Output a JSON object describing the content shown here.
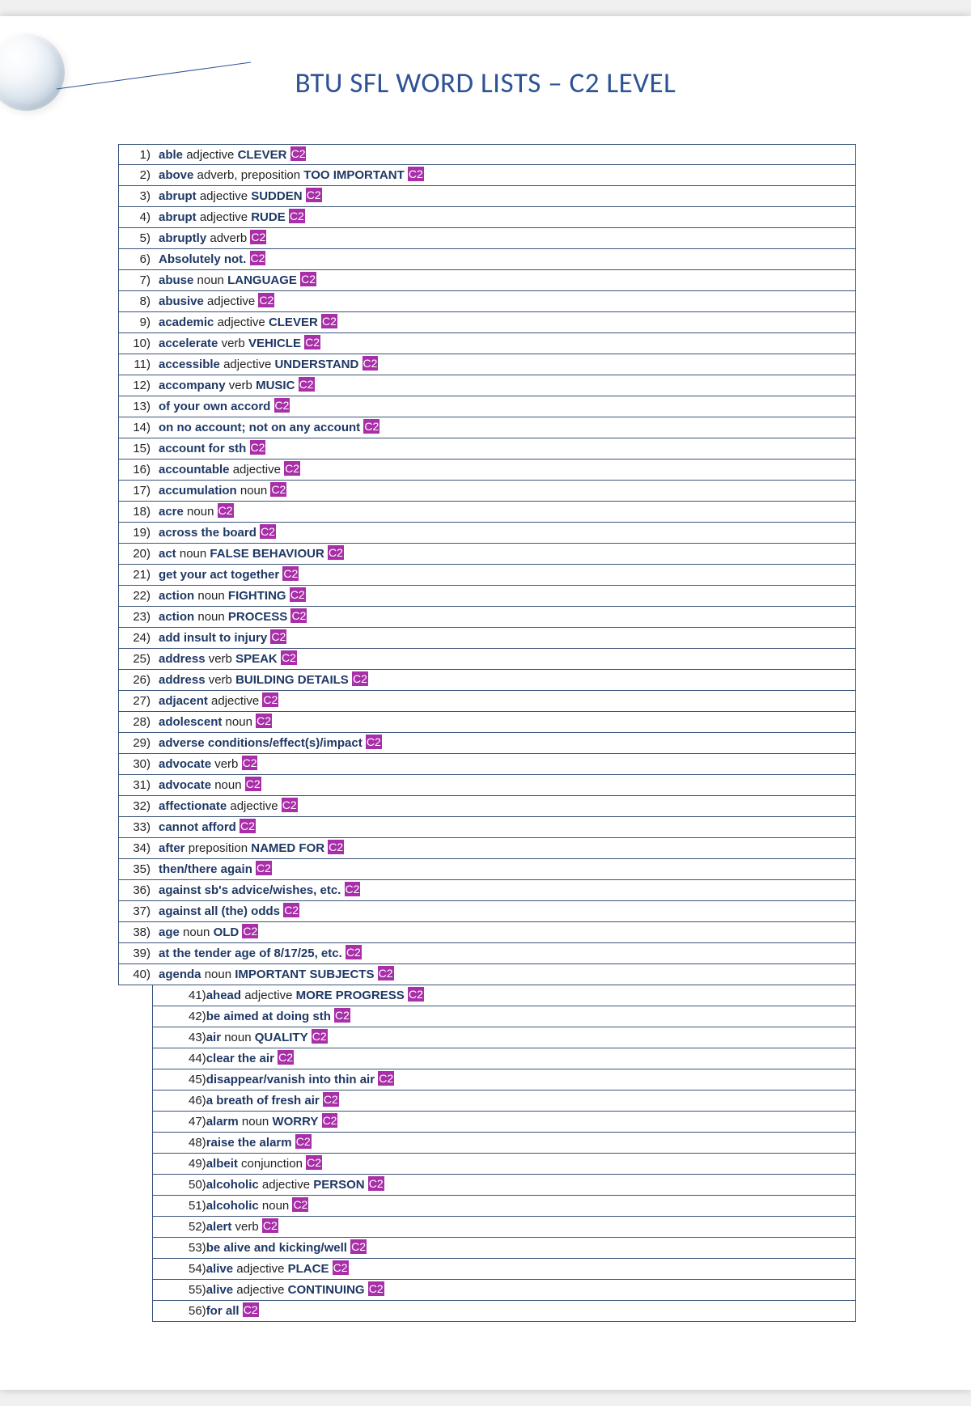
{
  "title": "BTU SFL WORD LISTS – C2 LEVEL",
  "level_tag": "C2",
  "colors": {
    "title_color": "#2e5395",
    "word_color": "#1f3864",
    "tag_bg": "#a82fa8",
    "tag_fg": "#ffffff",
    "border": "#3b547a"
  },
  "rows": [
    {
      "n": 1,
      "word": "able",
      "pos": "adjective",
      "meaning": "CLEVER",
      "indent": false
    },
    {
      "n": 2,
      "word": "above",
      "pos": "adverb, preposition",
      "meaning": "TOO IMPORTANT",
      "indent": false
    },
    {
      "n": 3,
      "word": "abrupt",
      "pos": "adjective",
      "meaning": "SUDDEN",
      "indent": false
    },
    {
      "n": 4,
      "word": "abrupt",
      "pos": "adjective",
      "meaning": "RUDE",
      "indent": false
    },
    {
      "n": 5,
      "word": "abruptly",
      "pos": "adverb",
      "meaning": "",
      "indent": false
    },
    {
      "n": 6,
      "word": "Absolutely not.",
      "pos": "",
      "meaning": "",
      "indent": false
    },
    {
      "n": 7,
      "word": "abuse",
      "pos": "noun",
      "meaning": "LANGUAGE",
      "indent": false
    },
    {
      "n": 8,
      "word": "abusive",
      "pos": "adjective",
      "meaning": "",
      "indent": false
    },
    {
      "n": 9,
      "word": "academic",
      "pos": "adjective",
      "meaning": "CLEVER",
      "indent": false
    },
    {
      "n": 10,
      "word": "accelerate",
      "pos": "verb",
      "meaning": "VEHICLE",
      "indent": false
    },
    {
      "n": 11,
      "word": "accessible",
      "pos": "adjective",
      "meaning": "UNDERSTAND",
      "indent": false
    },
    {
      "n": 12,
      "word": "accompany",
      "pos": "verb",
      "meaning": "MUSIC",
      "indent": false
    },
    {
      "n": 13,
      "word": "of your own accord",
      "pos": "",
      "meaning": "",
      "indent": false
    },
    {
      "n": 14,
      "word": "on no account; not on any account",
      "pos": "",
      "meaning": "",
      "indent": false
    },
    {
      "n": 15,
      "word": "account for sth",
      "pos": "",
      "meaning": "",
      "indent": false
    },
    {
      "n": 16,
      "word": "accountable",
      "pos": "adjective",
      "meaning": "",
      "indent": false
    },
    {
      "n": 17,
      "word": "accumulation",
      "pos": "noun",
      "meaning": "",
      "indent": false
    },
    {
      "n": 18,
      "word": "acre",
      "pos": "noun",
      "meaning": "",
      "indent": false
    },
    {
      "n": 19,
      "word": "across the board",
      "pos": "",
      "meaning": "",
      "indent": false
    },
    {
      "n": 20,
      "word": "act",
      "pos": "noun",
      "meaning": "FALSE BEHAVIOUR",
      "indent": false
    },
    {
      "n": 21,
      "word": "get your act together",
      "pos": "",
      "meaning": "",
      "indent": false
    },
    {
      "n": 22,
      "word": "action",
      "pos": "noun",
      "meaning": "FIGHTING",
      "indent": false
    },
    {
      "n": 23,
      "word": "action",
      "pos": "noun",
      "meaning": "PROCESS",
      "indent": false
    },
    {
      "n": 24,
      "word": "add insult to injury",
      "pos": "",
      "meaning": "",
      "indent": false
    },
    {
      "n": 25,
      "word": "address",
      "pos": "verb",
      "meaning": "SPEAK",
      "indent": false
    },
    {
      "n": 26,
      "word": "address",
      "pos": "verb",
      "meaning": "BUILDING DETAILS",
      "indent": false
    },
    {
      "n": 27,
      "word": "adjacent",
      "pos": "adjective",
      "meaning": "",
      "indent": false
    },
    {
      "n": 28,
      "word": "adolescent",
      "pos": "noun",
      "meaning": "",
      "indent": false
    },
    {
      "n": 29,
      "word": "adverse conditions/effect(s)/impact",
      "pos": "",
      "meaning": "",
      "indent": false
    },
    {
      "n": 30,
      "word": "advocate",
      "pos": "verb",
      "meaning": "",
      "indent": false
    },
    {
      "n": 31,
      "word": "advocate",
      "pos": "noun",
      "meaning": "",
      "indent": false
    },
    {
      "n": 32,
      "word": "affectionate",
      "pos": "adjective",
      "meaning": "",
      "indent": false
    },
    {
      "n": 33,
      "word": "cannot afford",
      "pos": "",
      "meaning": "",
      "indent": false
    },
    {
      "n": 34,
      "word": "after",
      "pos": "preposition",
      "meaning": "NAMED FOR",
      "indent": false
    },
    {
      "n": 35,
      "word": "then/there again",
      "pos": "",
      "meaning": "",
      "indent": false
    },
    {
      "n": 36,
      "word": "against sb's advice/wishes, etc.",
      "pos": "",
      "meaning": "",
      "indent": false
    },
    {
      "n": 37,
      "word": "against all (the) odds",
      "pos": "",
      "meaning": "",
      "indent": false
    },
    {
      "n": 38,
      "word": "age",
      "pos": "noun",
      "meaning": "OLD",
      "indent": false
    },
    {
      "n": 39,
      "word": "at the tender age of 8/17/25, etc.",
      "pos": "",
      "meaning": "",
      "indent": false
    },
    {
      "n": 40,
      "word": "agenda",
      "pos": "noun",
      "meaning": "IMPORTANT SUBJECTS",
      "indent": false
    },
    {
      "n": 41,
      "word": "ahead",
      "pos": "adjective",
      "meaning": "MORE PROGRESS",
      "indent": true
    },
    {
      "n": 42,
      "word": "be aimed at doing sth",
      "pos": "",
      "meaning": "",
      "indent": true
    },
    {
      "n": 43,
      "word": "air",
      "pos": "noun",
      "meaning": "QUALITY",
      "indent": true
    },
    {
      "n": 44,
      "word": "clear the air",
      "pos": "",
      "meaning": "",
      "indent": true
    },
    {
      "n": 45,
      "word": "disappear/vanish into thin air",
      "pos": "",
      "meaning": "",
      "indent": true
    },
    {
      "n": 46,
      "word": "a breath of fresh air",
      "pos": "",
      "meaning": "",
      "indent": true
    },
    {
      "n": 47,
      "word": "alarm",
      "pos": "noun",
      "meaning": "WORRY",
      "indent": true
    },
    {
      "n": 48,
      "word": "raise the alarm",
      "pos": "",
      "meaning": "",
      "indent": true
    },
    {
      "n": 49,
      "word": "albeit",
      "pos": "conjunction",
      "meaning": "",
      "indent": true
    },
    {
      "n": 50,
      "word": "alcoholic",
      "pos": "adjective",
      "meaning": "PERSON",
      "indent": true
    },
    {
      "n": 51,
      "word": "alcoholic",
      "pos": "noun",
      "meaning": "",
      "indent": true
    },
    {
      "n": 52,
      "word": "alert",
      "pos": "verb",
      "meaning": "",
      "indent": true
    },
    {
      "n": 53,
      "word": "be alive and kicking/well",
      "pos": "",
      "meaning": "",
      "indent": true
    },
    {
      "n": 54,
      "word": "alive",
      "pos": "adjective",
      "meaning": "PLACE",
      "indent": true
    },
    {
      "n": 55,
      "word": "alive",
      "pos": "adjective",
      "meaning": "CONTINUING",
      "indent": true
    },
    {
      "n": 56,
      "word": "for all",
      "pos": "",
      "meaning": "",
      "indent": true
    }
  ]
}
